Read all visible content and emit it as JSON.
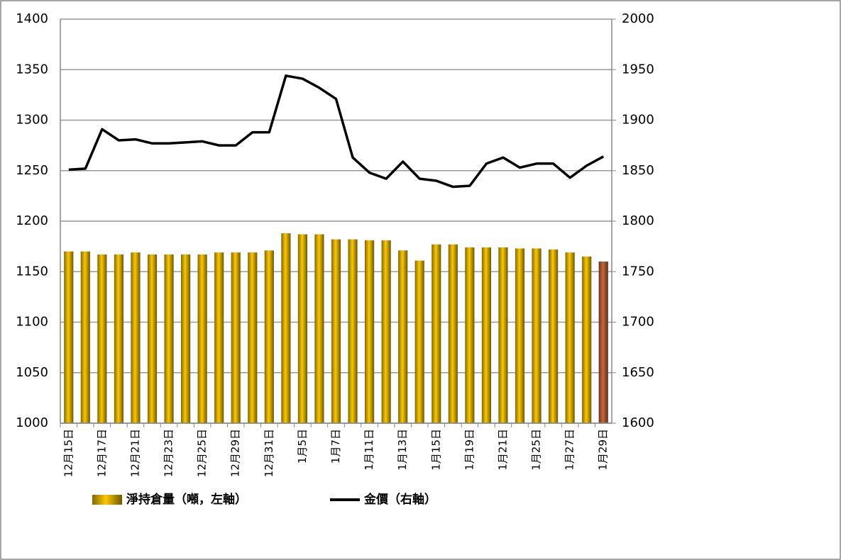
{
  "chart_data": {
    "type": "bar-line",
    "categories": [
      "12月15日",
      null,
      "12月17日",
      null,
      "12月21日",
      null,
      "12月23日",
      null,
      "12月25日",
      null,
      "12月29日",
      null,
      "12月31日",
      null,
      "1月5日",
      null,
      "1月7日",
      null,
      "1月11日",
      null,
      "1月13日",
      null,
      "1月15日",
      null,
      "1月19日",
      null,
      "1月21日",
      null,
      "1月25日",
      null,
      "1月27日",
      null,
      "1月29日"
    ],
    "series": [
      {
        "name": "淨持倉量（噸，左軸）",
        "type": "bar",
        "color": "#c9a000",
        "colors": [
          "#c9a000",
          "#c9a000",
          "#c9a000",
          "#c9a000",
          "#c9a000",
          "#c9a000",
          "#c9a000",
          "#c9a000",
          "#c9a000",
          "#c9a000",
          "#c9a000",
          "#c9a000",
          "#c9a000",
          "#c9a000",
          "#c9a000",
          "#c9a000",
          "#c9a000",
          "#c9a000",
          "#c9a000",
          "#c9a000",
          "#c9a000",
          "#c9a000",
          "#c9a000",
          "#c9a000",
          "#c9a000",
          "#c9a000",
          "#c9a000",
          "#c9a000",
          "#c9a000",
          "#c9a000",
          "#c9a000",
          "#c9a000",
          "#a0522d"
        ],
        "values": [
          1170,
          1170,
          1167,
          1167,
          1169,
          1167,
          1167,
          1167,
          1167,
          1169,
          1169,
          1169,
          1171,
          1188,
          1187,
          1187,
          1182,
          1182,
          1181,
          1181,
          1171,
          1161,
          1177,
          1177,
          1174,
          1174,
          1174,
          1173,
          1173,
          1172,
          1169,
          1165,
          1160
        ]
      },
      {
        "name": "金價（右軸）",
        "type": "line",
        "axis": "y2",
        "color": "#000000",
        "values": [
          1851,
          1852,
          1891,
          1880,
          1881,
          1877,
          1877,
          1878,
          1879,
          1875,
          1875,
          1888,
          1888,
          1944,
          1941,
          1932,
          1921,
          1863,
          1848,
          1842,
          1859,
          1842,
          1840,
          1834,
          1835,
          1857,
          1863,
          1853,
          1857,
          1857,
          1843,
          1855,
          1864
        ]
      }
    ],
    "ylim": [
      1000,
      1400
    ],
    "yticks": [
      1000,
      1050,
      1100,
      1150,
      1200,
      1250,
      1300,
      1350,
      1400
    ],
    "y2lim": [
      1600,
      2000
    ],
    "y2ticks": [
      1600,
      1650,
      1700,
      1750,
      1800,
      1850,
      1900,
      1950,
      2000
    ],
    "grid": true,
    "legend": "bottom"
  }
}
